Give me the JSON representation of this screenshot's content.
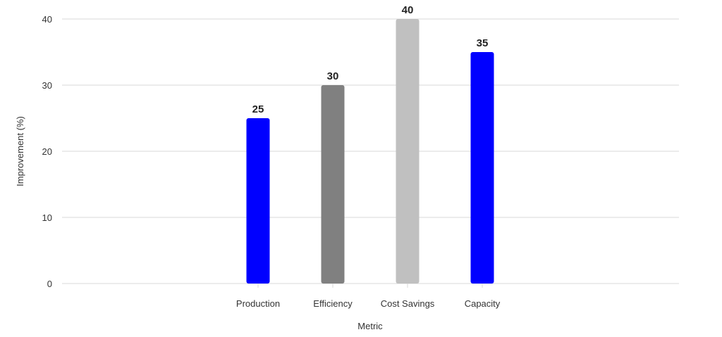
{
  "chart_data": {
    "type": "bar",
    "title": "",
    "xlabel": "Metric",
    "ylabel": "Improvement (%)",
    "categories": [
      "Production",
      "Efficiency",
      "Cost Savings",
      "Capacity"
    ],
    "values": [
      25,
      30,
      40,
      35
    ],
    "bar_colors": [
      "#0000ff",
      "#808080",
      "#c0c0c0",
      "#0000ff"
    ],
    "ylim": [
      0,
      40
    ],
    "yticks": [
      0,
      10,
      20,
      30,
      40
    ],
    "grid": true
  }
}
